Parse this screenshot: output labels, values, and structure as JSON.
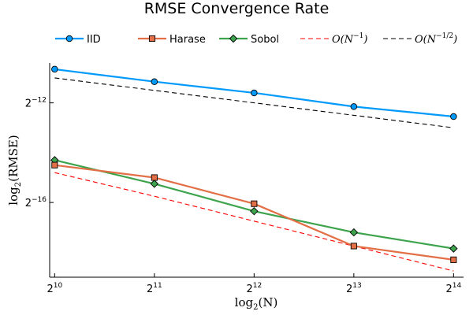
{
  "chart_data": {
    "type": "line",
    "title": "RMSE Convergence Rate",
    "x_scale": "log2",
    "y_scale": "log2",
    "grid": false,
    "legend_position": "top",
    "xlabel": {
      "prefix": "log",
      "subscript": "2",
      "text": "(N)"
    },
    "ylabel": {
      "prefix": "log",
      "subscript": "2",
      "text": "(RMSE)"
    },
    "x_ticks": [
      {
        "value": 10,
        "base": "2",
        "exp": "10"
      },
      {
        "value": 11,
        "base": "2",
        "exp": "11"
      },
      {
        "value": 12,
        "base": "2",
        "exp": "12"
      },
      {
        "value": 13,
        "base": "2",
        "exp": "13"
      },
      {
        "value": 14,
        "base": "2",
        "exp": "14"
      }
    ],
    "y_ticks": [
      {
        "value": -12,
        "base": "2",
        "exp": "−12"
      },
      {
        "value": -16,
        "base": "2",
        "exp": "−16"
      }
    ],
    "xlim": [
      9.95,
      14.1
    ],
    "ylim": [
      -19.0,
      -10.4
    ],
    "x_log2": [
      10,
      11,
      12,
      13,
      14
    ],
    "series": [
      {
        "name": "IID",
        "color": "#009AFA",
        "marker": "circle",
        "line_style": "solid",
        "y_log2": [
          -10.65,
          -11.15,
          -11.6,
          -12.15,
          -12.55
        ]
      },
      {
        "name": "Harase",
        "color": "#E26F46",
        "marker": "square",
        "line_style": "solid",
        "y_log2": [
          -14.5,
          -15.0,
          -16.05,
          -17.75,
          -18.3
        ]
      },
      {
        "name": "Sobol",
        "color": "#3DA44D",
        "marker": "diamond",
        "line_style": "solid",
        "y_log2": [
          -14.3,
          -15.25,
          -16.35,
          -17.2,
          -17.85
        ]
      },
      {
        "name": "O(N^{-1})",
        "color": "#FF0000",
        "marker": "none",
        "line_style": "dashed",
        "y_log2": [
          -14.8,
          -15.75,
          -16.75,
          -17.75,
          -18.75
        ]
      },
      {
        "name": "O(N^{-1/2})",
        "color": "#000000",
        "marker": "none",
        "line_style": "dashed",
        "y_log2": [
          -11.0,
          -11.5,
          -12.0,
          -12.5,
          -13.0
        ]
      }
    ],
    "legend": [
      {
        "label": "IID",
        "math": false,
        "series": 0
      },
      {
        "label": "Harase",
        "math": false,
        "series": 1
      },
      {
        "label": "Sobol",
        "math": false,
        "series": 2
      },
      {
        "label": "O(N",
        "exp": "−1",
        "suffix": ")",
        "math": true,
        "series": 3
      },
      {
        "label": "O(N",
        "exp": "−1/2",
        "suffix": ")",
        "math": true,
        "series": 4
      }
    ]
  }
}
